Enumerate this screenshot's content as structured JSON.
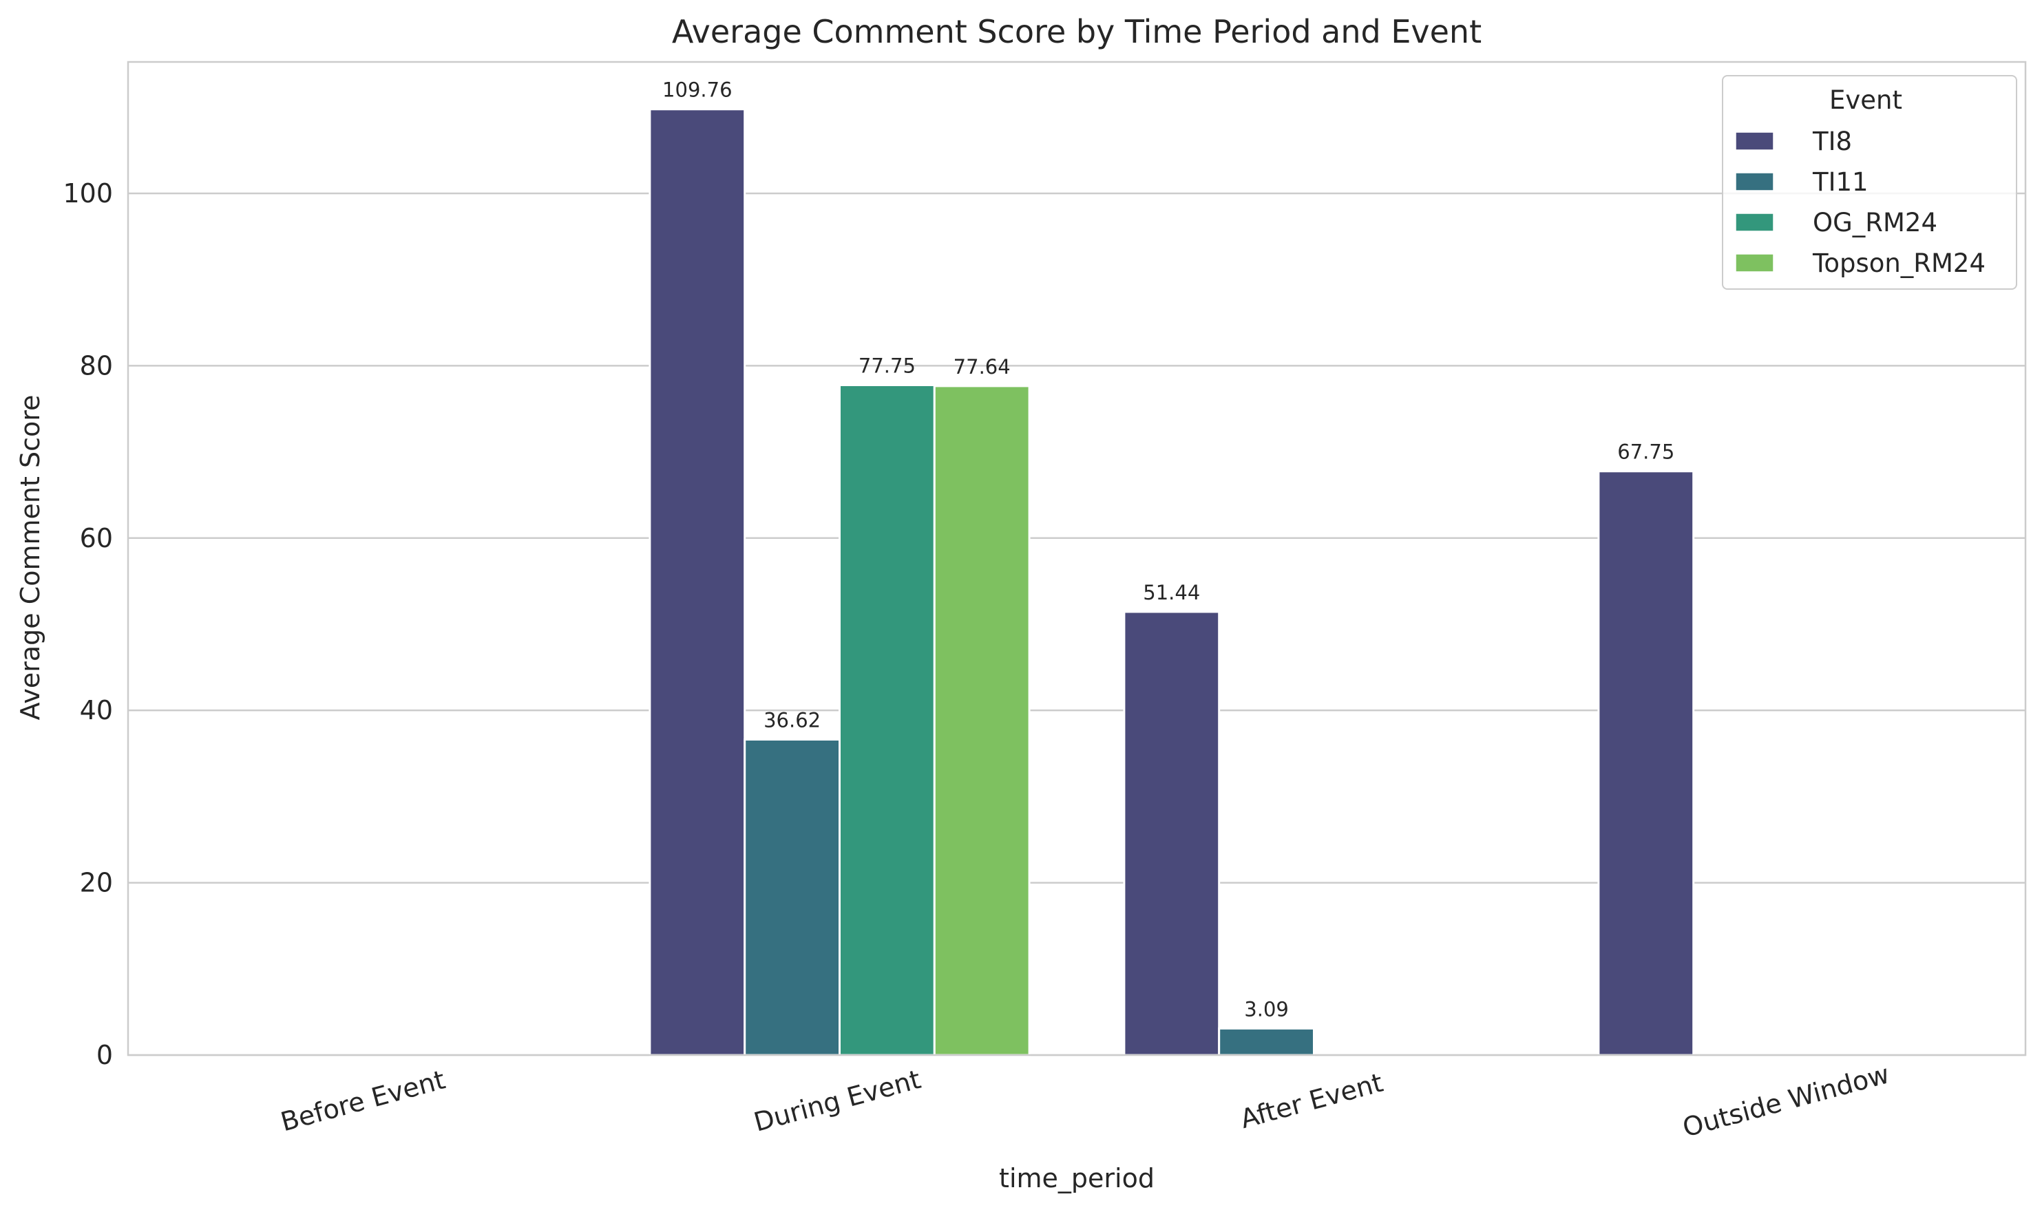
{
  "chart_data": {
    "type": "bar",
    "title": "Average Comment Score by Time Period and Event",
    "xlabel": "time_period",
    "ylabel": "Average Comment Score",
    "categories": [
      "Before Event",
      "During Event",
      "After Event",
      "Outside Window"
    ],
    "ylim": [
      0,
      115.25
    ],
    "yticks": [
      0,
      20,
      40,
      60,
      80,
      100
    ],
    "grid": true,
    "legend": {
      "title": "Event",
      "placement": "top-right"
    },
    "series": [
      {
        "name": "TI8",
        "color": "#4a4a7a",
        "values": [
          null,
          109.76,
          51.44,
          67.75
        ],
        "labels": [
          "",
          "109.76",
          "51.44",
          "67.75"
        ]
      },
      {
        "name": "TI11",
        "color": "#367080",
        "values": [
          null,
          36.62,
          3.09,
          null
        ],
        "labels": [
          "",
          "36.62",
          "3.09",
          ""
        ]
      },
      {
        "name": "OG_RM24",
        "color": "#33977c",
        "values": [
          null,
          77.75,
          null,
          null
        ],
        "labels": [
          "",
          "77.75",
          "",
          ""
        ]
      },
      {
        "name": "Topson_RM24",
        "color": "#7ec160",
        "values": [
          null,
          77.64,
          null,
          null
        ],
        "labels": [
          "",
          "77.64",
          "",
          ""
        ]
      }
    ]
  }
}
